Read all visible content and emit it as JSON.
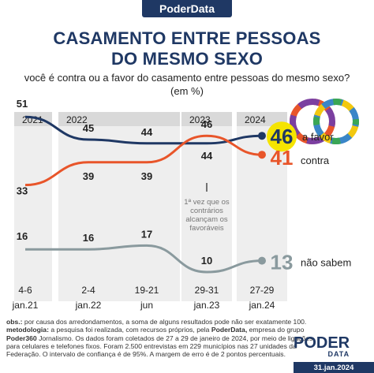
{
  "header": {
    "brand": "PoderData",
    "title_line1": "CASAMENTO ENTRE PESSOAS",
    "title_line2": "DO MESMO SEXO",
    "question": "você é contra ou a favor do casamento entre pessoas do mesmo sexo?",
    "unit": "(em %)"
  },
  "chart_data": {
    "type": "line",
    "years": [
      "2021",
      "2022",
      "2023",
      "2024"
    ],
    "x": [
      "4-6 jan.21",
      "2-4 jan.22",
      "19-21 jun",
      "29-31 jan.23",
      "27-29 jan.24"
    ],
    "x_line1": [
      "4-6",
      "2-4",
      "19-21",
      "29-31",
      "27-29"
    ],
    "x_line2": [
      "jan.21",
      "jan.22",
      "jun",
      "jan.23",
      "jan.24"
    ],
    "series": [
      {
        "name": "a favor",
        "color": "#1f3864",
        "values": [
          51,
          45,
          44,
          44,
          46
        ]
      },
      {
        "name": "contra",
        "color": "#e8552a",
        "values": [
          33,
          39,
          39,
          46,
          41
        ]
      },
      {
        "name": "não sabem",
        "color": "#8a9a9e",
        "values": [
          16,
          16,
          17,
          10,
          13
        ]
      }
    ],
    "annotation": "1ª vez que os contrários alcançam os favoráveis"
  },
  "footer": {
    "obs_label": "obs.:",
    "obs_text": "por causa dos arredondamentos, a soma de alguns resultados pode não ser exatamente 100.",
    "method_label": "metodologia:",
    "method_text_1": "a pesquisa foi realizada, com recursos próprios, pela",
    "method_bold_1": "PoderData,",
    "method_text_2": "empresa do grupo",
    "method_bold_2": "Poder360",
    "method_text_3": "Jornalismo. Os dados foram coletados de 27 a 29 de janeiro de 2024, por meio de ligações para celulares e telefones fixos. Foram 2.500 entrevistas em 229 municípios nas 27 unidades da Federação. O intervalo de confiança é de 95%. A margem de erro é de 2 pontos percentuais.",
    "logo_top": "PODER",
    "logo_bottom": "DATA",
    "date": "31.jan.2024"
  }
}
